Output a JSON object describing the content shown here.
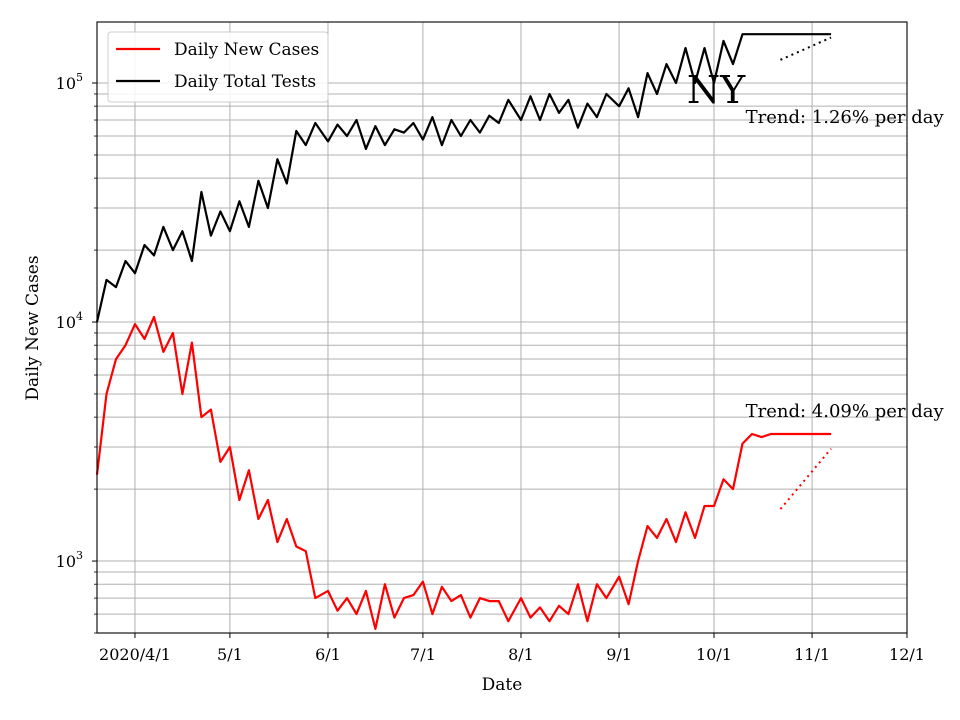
{
  "chart_data": {
    "type": "line",
    "title": "NY",
    "xlabel": "Date",
    "ylabel": "Daily New Cases",
    "y_scale": "log",
    "ylim": [
      500,
      180000
    ],
    "xlim": [
      "2020-03-20",
      "2020-12-01"
    ],
    "x_ticks": [
      {
        "date": "2020-04-01",
        "label": "2020/4/1"
      },
      {
        "date": "2020-05-01",
        "label": "5/1"
      },
      {
        "date": "2020-06-01",
        "label": "6/1"
      },
      {
        "date": "2020-07-01",
        "label": "7/1"
      },
      {
        "date": "2020-08-01",
        "label": "8/1"
      },
      {
        "date": "2020-09-01",
        "label": "9/1"
      },
      {
        "date": "2020-10-01",
        "label": "10/1"
      },
      {
        "date": "2020-11-01",
        "label": "11/1"
      },
      {
        "date": "2020-12-01",
        "label": "12/1"
      }
    ],
    "y_ticks": [
      {
        "value": 1000,
        "base": "10",
        "exp": "3"
      },
      {
        "value": 10000,
        "base": "10",
        "exp": "4"
      },
      {
        "value": 100000,
        "base": "10",
        "exp": "5"
      }
    ],
    "grid": true,
    "legend_position": "top-left",
    "series": [
      {
        "name": "Daily New Cases",
        "color": "#ff0000",
        "x": [
          "2020-03-20",
          "2020-03-23",
          "2020-03-26",
          "2020-03-29",
          "2020-04-01",
          "2020-04-04",
          "2020-04-07",
          "2020-04-10",
          "2020-04-13",
          "2020-04-16",
          "2020-04-19",
          "2020-04-22",
          "2020-04-25",
          "2020-04-28",
          "2020-05-01",
          "2020-05-04",
          "2020-05-07",
          "2020-05-10",
          "2020-05-13",
          "2020-05-16",
          "2020-05-19",
          "2020-05-22",
          "2020-05-25",
          "2020-05-28",
          "2020-06-01",
          "2020-06-04",
          "2020-06-07",
          "2020-06-10",
          "2020-06-13",
          "2020-06-16",
          "2020-06-19",
          "2020-06-22",
          "2020-06-25",
          "2020-06-28",
          "2020-07-01",
          "2020-07-04",
          "2020-07-07",
          "2020-07-10",
          "2020-07-13",
          "2020-07-16",
          "2020-07-19",
          "2020-07-22",
          "2020-07-25",
          "2020-07-28",
          "2020-08-01",
          "2020-08-04",
          "2020-08-07",
          "2020-08-10",
          "2020-08-13",
          "2020-08-16",
          "2020-08-19",
          "2020-08-22",
          "2020-08-25",
          "2020-08-28",
          "2020-09-01",
          "2020-09-04",
          "2020-09-07",
          "2020-09-10",
          "2020-09-13",
          "2020-09-16",
          "2020-09-19",
          "2020-09-22",
          "2020-09-25",
          "2020-09-28",
          "2020-10-01",
          "2020-10-04",
          "2020-10-07",
          "2020-10-10",
          "2020-10-13",
          "2020-10-16",
          "2020-10-19",
          "2020-10-22",
          "2020-10-25",
          "2020-10-28",
          "2020-10-31",
          "2020-11-03",
          "2020-11-06",
          "2020-11-07"
        ],
        "values": [
          2300,
          5000,
          7000,
          8000,
          9800,
          8500,
          10500,
          7500,
          9000,
          5000,
          8200,
          4000,
          4300,
          2600,
          3000,
          1800,
          2400,
          1500,
          1800,
          1200,
          1500,
          1150,
          1100,
          700,
          750,
          620,
          700,
          600,
          750,
          520,
          800,
          580,
          700,
          720,
          820,
          600,
          780,
          680,
          720,
          580,
          700,
          680,
          680,
          560,
          700,
          580,
          640,
          560,
          650,
          600,
          800,
          560,
          800,
          700,
          860,
          660,
          1000,
          1400,
          1250,
          1500,
          1200,
          1600,
          1250,
          1700,
          1700,
          2200,
          2000,
          3100,
          3400,
          3300,
          3400,
          3400,
          3400,
          3400,
          3400,
          3400,
          3400,
          3400
        ]
      },
      {
        "name": "Daily Total Tests",
        "color": "#000000",
        "x": [
          "2020-03-20",
          "2020-03-23",
          "2020-03-26",
          "2020-03-29",
          "2020-04-01",
          "2020-04-04",
          "2020-04-07",
          "2020-04-10",
          "2020-04-13",
          "2020-04-16",
          "2020-04-19",
          "2020-04-22",
          "2020-04-25",
          "2020-04-28",
          "2020-05-01",
          "2020-05-04",
          "2020-05-07",
          "2020-05-10",
          "2020-05-13",
          "2020-05-16",
          "2020-05-19",
          "2020-05-22",
          "2020-05-25",
          "2020-05-28",
          "2020-06-01",
          "2020-06-04",
          "2020-06-07",
          "2020-06-10",
          "2020-06-13",
          "2020-06-16",
          "2020-06-19",
          "2020-06-22",
          "2020-06-25",
          "2020-06-28",
          "2020-07-01",
          "2020-07-04",
          "2020-07-07",
          "2020-07-10",
          "2020-07-13",
          "2020-07-16",
          "2020-07-19",
          "2020-07-22",
          "2020-07-25",
          "2020-07-28",
          "2020-08-01",
          "2020-08-04",
          "2020-08-07",
          "2020-08-10",
          "2020-08-13",
          "2020-08-16",
          "2020-08-19",
          "2020-08-22",
          "2020-08-25",
          "2020-08-28",
          "2020-09-01",
          "2020-09-04",
          "2020-09-07",
          "2020-09-10",
          "2020-09-13",
          "2020-09-16",
          "2020-09-19",
          "2020-09-22",
          "2020-09-25",
          "2020-09-28",
          "2020-10-01",
          "2020-10-04",
          "2020-10-07",
          "2020-10-10",
          "2020-10-13",
          "2020-10-16",
          "2020-10-19",
          "2020-10-22",
          "2020-10-25",
          "2020-10-28",
          "2020-10-31",
          "2020-11-03",
          "2020-11-06",
          "2020-11-07"
        ],
        "values": [
          10000,
          15000,
          14000,
          18000,
          16000,
          21000,
          19000,
          25000,
          20000,
          24000,
          18000,
          35000,
          23000,
          29000,
          24000,
          32000,
          25000,
          39000,
          30000,
          48000,
          38000,
          63000,
          55000,
          68000,
          57000,
          67000,
          60000,
          70000,
          53000,
          66000,
          55000,
          64000,
          62000,
          68000,
          58000,
          72000,
          55000,
          70000,
          60000,
          70000,
          62000,
          73000,
          68000,
          85000,
          70000,
          88000,
          70000,
          90000,
          75000,
          85000,
          65000,
          82000,
          72000,
          90000,
          80000,
          95000,
          72000,
          110000,
          90000,
          120000,
          100000,
          140000,
          100000,
          140000,
          100000,
          150000,
          120000,
          160000,
          160000,
          160000,
          160000,
          160000,
          160000,
          160000,
          160000,
          160000,
          160000,
          160000
        ]
      }
    ],
    "trend_lines": [
      {
        "series": "Daily Total Tests",
        "x": [
          "2020-10-22",
          "2020-11-07"
        ],
        "values": [
          125000,
          155000
        ]
      },
      {
        "series": "Daily New Cases",
        "x": [
          "2020-10-22",
          "2020-11-07"
        ],
        "values": [
          1650,
          2950
        ]
      }
    ],
    "annotations": [
      {
        "text": "Trend: 1.26% per day",
        "date": "2020-10-11",
        "value": 68000
      },
      {
        "text": "Trend: 4.09% per day",
        "date": "2020-10-11",
        "value": 4000
      }
    ]
  }
}
